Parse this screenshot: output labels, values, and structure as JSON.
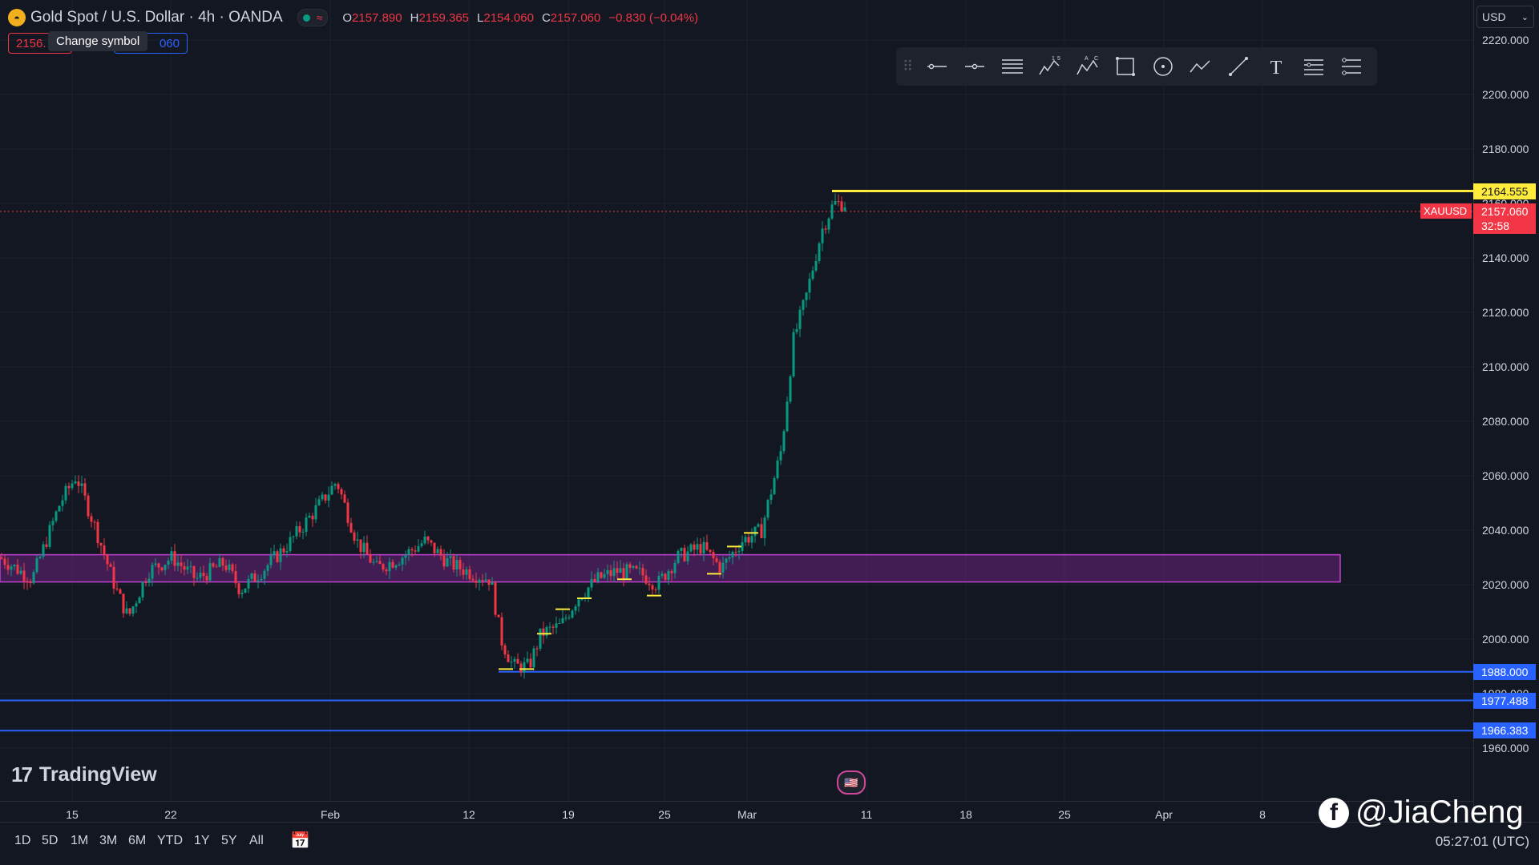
{
  "symbol": {
    "title": "Gold Spot / U.S. Dollar · 4h · OANDA",
    "logo_icon": "gold-bars-icon",
    "ohlc": [
      {
        "label": "O",
        "value": "2157.890"
      },
      {
        "label": "H",
        "value": "2159.365"
      },
      {
        "label": "L",
        "value": "2154.060"
      },
      {
        "label": "C",
        "value": "2157.060"
      },
      {
        "label": "",
        "value": "−0.830 (−0.04%)"
      }
    ],
    "sell_price": "2156.",
    "buy_price": "060",
    "tooltip": "Change symbol"
  },
  "toolbar": {
    "icons": [
      "horizontal-line-icon",
      "horizontal-ray-icon",
      "parallel-lines-icon",
      "elliott-wave-icon",
      "abc-pattern-icon",
      "rectangle-icon",
      "circle-icon",
      "path-icon",
      "trend-line-icon",
      "text-icon",
      "fib-retracement-icon",
      "settings-list-icon"
    ],
    "wave_labels": {
      "w1": "1",
      "w2": "5",
      "a": "A",
      "c": "C"
    },
    "text_tool": "T"
  },
  "price_axis": {
    "currency": "USD",
    "ticks": [
      "2220.000",
      "2200.000",
      "2180.000",
      "2160.000",
      "2140.000",
      "2120.000",
      "2100.000",
      "2080.000",
      "2060.000",
      "2040.000",
      "2020.000",
      "2000.000",
      "1980.000",
      "1960.000"
    ],
    "labels": [
      {
        "text": "2164.555",
        "bg": "#ffeb3b",
        "fg": "#131722"
      },
      {
        "text": "2157.060",
        "bg": "#f23645",
        "fg": "#ffffff"
      },
      {
        "text": "32:58",
        "bg": "#f23645",
        "fg": "#ffffff"
      },
      {
        "text": "1988.000",
        "bg": "#2962ff",
        "fg": "#ffffff"
      },
      {
        "text": "1977.488",
        "bg": "#2962ff",
        "fg": "#ffffff"
      },
      {
        "text": "1966.383",
        "bg": "#2962ff",
        "fg": "#ffffff"
      }
    ],
    "symbol_tag": "XAUUSD"
  },
  "time_axis": [
    "15",
    "22",
    "Feb",
    "12",
    "19",
    "25",
    "Mar",
    "11",
    "18",
    "25",
    "Apr",
    "8"
  ],
  "ranges": [
    "1D",
    "5D",
    "1M",
    "3M",
    "6M",
    "YTD",
    "1Y",
    "5Y",
    "All"
  ],
  "clock": "05:27:01 (UTC)",
  "brand": "TradingView",
  "watermark": "@JiaCheng",
  "colors": {
    "up": "#089981",
    "down": "#f23645",
    "zone": "#9c27b0",
    "resistance": "#ffeb3b",
    "support": "#2962ff"
  }
}
